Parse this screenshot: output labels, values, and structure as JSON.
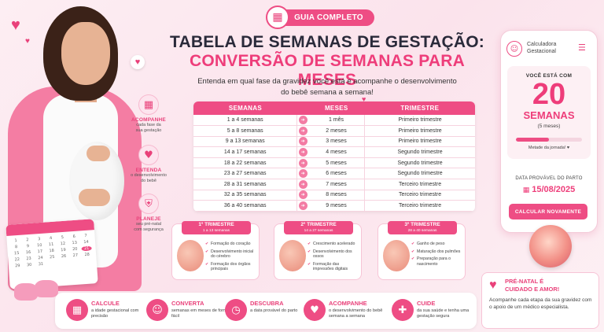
{
  "badge": {
    "label": "GUIA COMPLETO",
    "icon": "calendar-clock-icon"
  },
  "title_line1": "TABELA DE SEMANAS DE GESTAÇÃO:",
  "title_line2": "CONVERSÃO DE SEMANAS PARA MESES",
  "subtitle_line1": "Entenda em qual fase da gravidez você está e acompanhe o desenvolvimento",
  "subtitle_line2": "do bebê semana a semana!",
  "side_features": [
    {
      "title": "ACOMPANHE",
      "desc1": "cada fase da",
      "desc2": "sua gestação",
      "icon": "calendar-check-icon"
    },
    {
      "title": "ENTENDA",
      "desc1": "o desenvolvimento",
      "desc2": "do bebê",
      "icon": "heart-pulse-icon"
    },
    {
      "title": "PLANEJE",
      "desc1": "seu pré-natal",
      "desc2": "com segurança",
      "icon": "shield-heart-icon"
    }
  ],
  "table": {
    "headers": [
      "SEMANAS",
      "MESES",
      "TRIMESTRE"
    ],
    "rows": [
      {
        "weeks": "1 a 4 semanas",
        "months": "1 mês",
        "trimester": "Primeiro trimestre"
      },
      {
        "weeks": "5 a 8 semanas",
        "months": "2 meses",
        "trimester": "Primeiro trimestre"
      },
      {
        "weeks": "9 a 13 semanas",
        "months": "3 meses",
        "trimester": "Primeiro trimestre"
      },
      {
        "weeks": "14 a 17 semanas",
        "months": "4 meses",
        "trimester": "Segundo trimestre"
      },
      {
        "weeks": "18 a 22 semanas",
        "months": "5 meses",
        "trimester": "Segundo trimestre"
      },
      {
        "weeks": "23 a 27 semanas",
        "months": "6 meses",
        "trimester": "Segundo trimestre"
      },
      {
        "weeks": "28 a 31 semanas",
        "months": "7 meses",
        "trimester": "Terceiro trimestre"
      },
      {
        "weeks": "32 a 35 semanas",
        "months": "8 meses",
        "trimester": "Terceiro trimestre"
      },
      {
        "weeks": "36 a 40 semanas",
        "months": "9 meses",
        "trimester": "Terceiro trimestre"
      }
    ]
  },
  "trimesters": [
    {
      "title": "1º TRIMESTRE",
      "range": "1 a 13 semanas",
      "items": [
        "Formação do coração",
        "Desenvolvimento inicial do cérebro",
        "Formação dos órgãos principais"
      ]
    },
    {
      "title": "2º TRIMESTRE",
      "range": "14 a 27 semanas",
      "items": [
        "Crescimento acelerado",
        "Desenvolvimento dos ossos",
        "Formação das impressões digitais"
      ]
    },
    {
      "title": "3º TRIMESTRE",
      "range": "28 a 40 semanas",
      "items": [
        "Ganho de peso",
        "Maturação dos pulmões",
        "Preparação para o nascimento"
      ]
    }
  ],
  "phone": {
    "app_title_1": "Calculadora",
    "app_title_2": "Gestacional",
    "label": "VOCÊ ESTÁ COM",
    "weeks_number": "20",
    "weeks_unit": "SEMANAS",
    "months": "(5 meses)",
    "progress": 0.5,
    "halfway": "Metade da jornada! ♥",
    "due_label": "DATA PROVÁVEL DO PARTO",
    "due_date": "15/08/2025",
    "button": "CALCULAR NOVAMENTE"
  },
  "love_card": {
    "title1": "PRÉ-NATAL É",
    "title2": "CUIDADO E AMOR!",
    "text": "Acompanhe cada etapa da sua gravidez com o apoio de um médico especialista."
  },
  "bottom_items": [
    {
      "title": "CALCULE",
      "desc": "a idade gestacional com precisão",
      "icon": "calculator-icon"
    },
    {
      "title": "CONVERTA",
      "desc": "semanas em meses de forma fácil",
      "icon": "fetus-icon"
    },
    {
      "title": "DESCUBRA",
      "desc": "a data provável do parto",
      "icon": "clock-icon"
    },
    {
      "title": "ACOMPANHE",
      "desc": "o desenvolvimento do bebê semana a semana",
      "icon": "heart-icon"
    },
    {
      "title": "CUIDE",
      "desc": "da sua saúde e tenha uma gestação segura",
      "icon": "doctor-icon"
    }
  ],
  "colors": {
    "accent": "#ee4d84",
    "accent_dark": "#e9417a",
    "background": "#fbe3ec"
  }
}
